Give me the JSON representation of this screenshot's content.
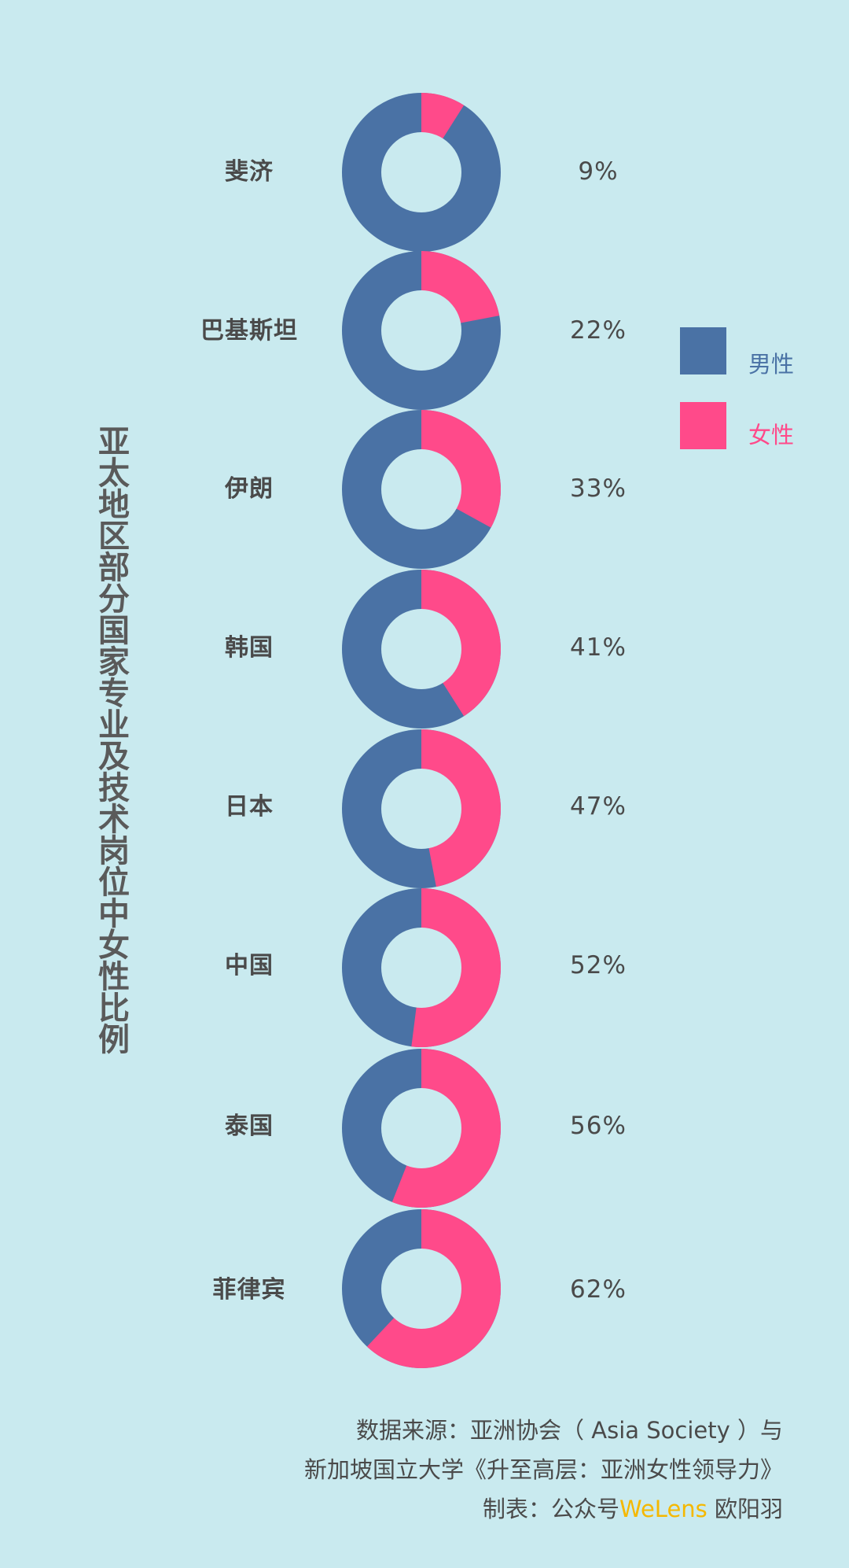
{
  "chart_data": {
    "type": "pie",
    "variant": "donut",
    "title": "亚太地区部分国家专业及技术岗位中女性比例",
    "legend": [
      {
        "name": "男性",
        "color": "#4a72a5"
      },
      {
        "name": "女性",
        "color": "#ff4a8a"
      }
    ],
    "legend_position": "right",
    "categories": [
      "斐济",
      "巴基斯坦",
      "伊朗",
      "韩国",
      "日本",
      "中国",
      "泰国",
      "菲律宾"
    ],
    "female_pct": [
      9,
      22,
      33,
      41,
      47,
      52,
      56,
      62
    ],
    "labels": [
      "9%",
      "22%",
      "33%",
      "41%",
      "47%",
      "52%",
      "56%",
      "62%"
    ]
  },
  "footer": {
    "line1": "数据来源：亚洲协会（ Asia Society ）与",
    "line2": "新加坡国立大学《升至高层：亚洲女性领导力》",
    "line3_prefix": "制表：公众号",
    "line3_brand": "WeLens",
    "line3_suffix": " 欧阳羽"
  }
}
